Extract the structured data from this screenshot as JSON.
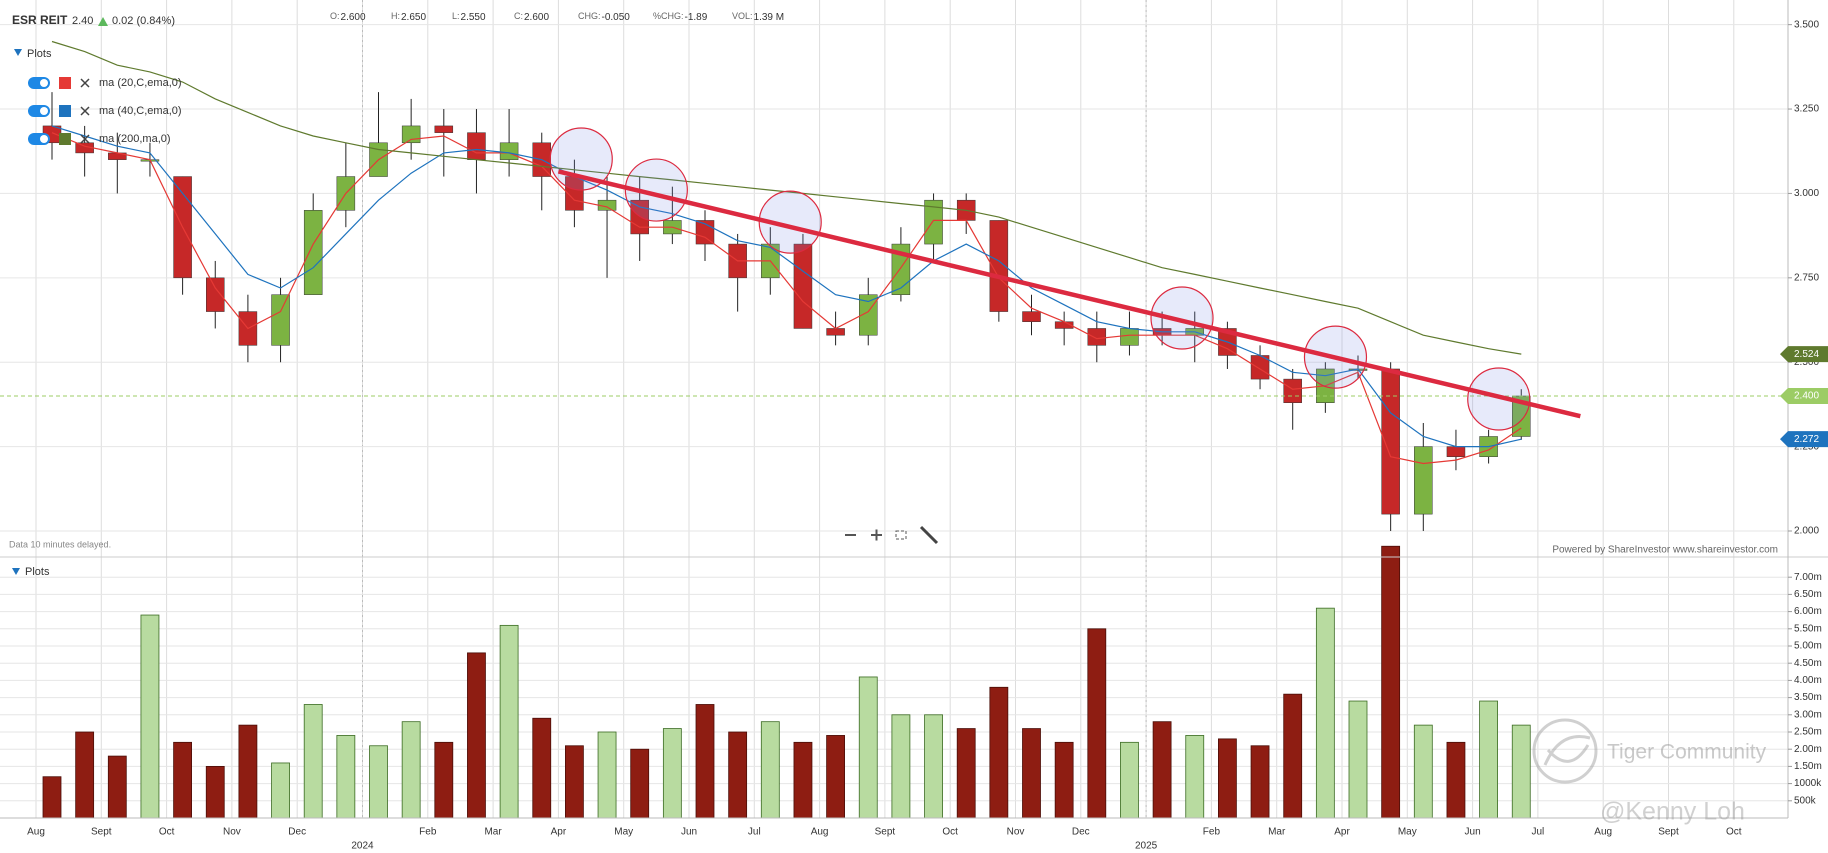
{
  "header": {
    "symbol": "ESR REIT",
    "last": "2.40",
    "change": "0.02 (0.84%)",
    "ohlc": [
      {
        "key": "O:",
        "value": "2.600"
      },
      {
        "key": "H:",
        "value": "2.650"
      },
      {
        "key": "L:",
        "value": "2.550"
      },
      {
        "key": "C:",
        "value": "2.600"
      },
      {
        "key": "CHG:",
        "value": "-0.050"
      },
      {
        "key": "%CHG:",
        "value": "-1.89"
      },
      {
        "key": "VOL:",
        "value": "1.39 M"
      }
    ]
  },
  "notes": {
    "delay": "Data 10 minutes delayed.",
    "credit": "Powered by ShareInvestor www.shareinvestor.com"
  },
  "watermark": {
    "brand": "Tiger Community",
    "author": "@Kenny Loh"
  },
  "chart_data": [
    {
      "type": "candlestick",
      "panel_label": "Plots",
      "categories": [
        "Aug",
        null,
        "Sept",
        null,
        "Oct",
        null,
        "Nov",
        null,
        "Dec",
        null,
        "2024",
        null,
        "Feb",
        null,
        "Mar",
        null,
        "Apr",
        null,
        "May",
        null,
        "Jun",
        null,
        "Jul",
        null,
        "Aug",
        null,
        "Sept",
        null,
        "Oct",
        null,
        "Nov",
        null,
        "Dec",
        null,
        "2025",
        null,
        "Feb",
        null,
        "Mar",
        null,
        "Apr",
        null,
        "May",
        null,
        "Jun",
        null,
        "Jul",
        null,
        "Aug",
        null,
        "Sept",
        null,
        "Oct",
        null
      ],
      "open": [
        3.2,
        3.15,
        3.12,
        3.1,
        3.05,
        2.75,
        2.65,
        2.55,
        2.7,
        2.95,
        3.05,
        3.15,
        3.2,
        3.18,
        3.1,
        3.15,
        3.05,
        2.95,
        2.98,
        2.88,
        2.92,
        2.85,
        2.75,
        2.85,
        2.6,
        2.58,
        2.7,
        2.85,
        2.98,
        2.92,
        2.65,
        2.62,
        2.6,
        2.55,
        2.6,
        2.58,
        2.6,
        2.52,
        2.45,
        2.38,
        2.48,
        2.48,
        2.05,
        2.25,
        2.22,
        2.28,
        null,
        null,
        null,
        null,
        null,
        null,
        null,
        null
      ],
      "high": [
        3.3,
        3.2,
        3.18,
        3.15,
        3.05,
        2.8,
        2.7,
        2.75,
        3.0,
        3.15,
        3.3,
        3.28,
        3.25,
        3.25,
        3.25,
        3.18,
        3.1,
        3.05,
        3.05,
        3.02,
        2.95,
        2.88,
        2.9,
        2.88,
        2.65,
        2.75,
        2.9,
        3.0,
        3.0,
        2.92,
        2.7,
        2.65,
        2.65,
        2.65,
        2.65,
        2.65,
        2.62,
        2.55,
        2.48,
        2.5,
        2.52,
        2.5,
        2.32,
        2.3,
        2.3,
        2.42,
        null,
        null,
        null,
        null,
        null,
        null,
        null,
        null
      ],
      "low": [
        3.1,
        3.05,
        3.0,
        3.05,
        2.7,
        2.6,
        2.5,
        2.5,
        2.7,
        2.9,
        3.05,
        3.1,
        3.05,
        3.0,
        3.05,
        2.95,
        2.9,
        2.75,
        2.8,
        2.85,
        2.8,
        2.65,
        2.7,
        2.6,
        2.55,
        2.55,
        2.68,
        2.8,
        2.88,
        2.62,
        2.58,
        2.55,
        2.5,
        2.52,
        2.55,
        2.5,
        2.48,
        2.42,
        2.3,
        2.35,
        2.45,
        2.0,
        2.0,
        2.18,
        2.2,
        2.27,
        null,
        null,
        null,
        null,
        null,
        null,
        null,
        null
      ],
      "close": [
        3.15,
        3.12,
        3.1,
        3.1,
        2.75,
        2.65,
        2.55,
        2.7,
        2.95,
        3.05,
        3.15,
        3.2,
        3.18,
        3.1,
        3.15,
        3.05,
        2.95,
        2.98,
        2.88,
        2.92,
        2.85,
        2.75,
        2.85,
        2.6,
        2.58,
        2.7,
        2.85,
        2.98,
        2.92,
        2.65,
        2.62,
        2.6,
        2.55,
        2.6,
        2.58,
        2.6,
        2.52,
        2.45,
        2.38,
        2.48,
        2.48,
        2.05,
        2.25,
        2.22,
        2.28,
        2.4,
        null,
        null,
        null,
        null,
        null,
        null,
        null,
        null
      ],
      "up_color": "#7cb342",
      "down_color": "#c62828",
      "series": [
        {
          "name": "ma (20,C,ema,0)",
          "color": "#e53935",
          "values": [
            3.18,
            3.14,
            3.12,
            3.1,
            2.9,
            2.72,
            2.6,
            2.65,
            2.85,
            3.0,
            3.1,
            3.16,
            3.17,
            3.12,
            3.12,
            3.08,
            2.98,
            2.96,
            2.9,
            2.9,
            2.87,
            2.8,
            2.8,
            2.68,
            2.6,
            2.65,
            2.78,
            2.92,
            2.92,
            2.75,
            2.66,
            2.62,
            2.57,
            2.58,
            2.58,
            2.58,
            2.54,
            2.48,
            2.42,
            2.43,
            2.47,
            2.22,
            2.2,
            2.21,
            2.24,
            2.305,
            null,
            null,
            null,
            null,
            null,
            null,
            null,
            null
          ]
        },
        {
          "name": "ma (40,C,ema,0)",
          "color": "#1e73be",
          "values": [
            3.2,
            3.17,
            3.14,
            3.12,
            3.0,
            2.88,
            2.76,
            2.72,
            2.78,
            2.88,
            2.98,
            3.06,
            3.12,
            3.13,
            3.12,
            3.1,
            3.05,
            3.01,
            2.96,
            2.94,
            2.91,
            2.86,
            2.84,
            2.77,
            2.7,
            2.68,
            2.72,
            2.8,
            2.85,
            2.8,
            2.72,
            2.67,
            2.62,
            2.6,
            2.59,
            2.59,
            2.56,
            2.52,
            2.47,
            2.46,
            2.48,
            2.35,
            2.28,
            2.25,
            2.25,
            2.272,
            null,
            null,
            null,
            null,
            null,
            null,
            null,
            null
          ]
        },
        {
          "name": "ma (200,ma,0)",
          "color": "#5f7a2e",
          "values": [
            3.45,
            3.42,
            3.38,
            3.36,
            3.33,
            3.28,
            3.24,
            3.2,
            3.17,
            3.15,
            3.13,
            3.12,
            3.11,
            3.1,
            3.09,
            3.08,
            3.07,
            3.06,
            3.05,
            3.04,
            3.03,
            3.02,
            3.01,
            3.0,
            2.99,
            2.98,
            2.97,
            2.96,
            2.95,
            2.93,
            2.9,
            2.87,
            2.84,
            2.81,
            2.78,
            2.76,
            2.74,
            2.72,
            2.7,
            2.68,
            2.66,
            2.62,
            2.58,
            2.56,
            2.54,
            2.524,
            null,
            null,
            null,
            null,
            null,
            null,
            null,
            null
          ]
        }
      ],
      "price_line": {
        "value": 2.4,
        "label": "2.400",
        "color": "#9ccc65"
      },
      "trendline": {
        "start": [
          16,
          3.065
        ],
        "end": [
          47.3,
          2.34
        ],
        "color": "#dc2a40"
      },
      "highlights": [
        [
          16.7,
          3.102
        ],
        [
          19.0,
          3.01
        ],
        [
          23.1,
          2.915
        ],
        [
          35.1,
          2.631
        ],
        [
          39.8,
          2.515
        ],
        [
          44.8,
          2.391
        ]
      ],
      "ylim": [
        1.923,
        3.573
      ],
      "yticks": [
        {
          "value": 2.0,
          "label": "2.000"
        },
        {
          "value": 2.25,
          "label": "2.250"
        },
        {
          "value": 2.5,
          "label": "2.500"
        },
        {
          "value": 2.75,
          "label": "2.750"
        },
        {
          "value": 3.0,
          "label": "3.000"
        },
        {
          "value": 3.25,
          "label": "3.250"
        },
        {
          "value": 3.5,
          "label": "3.500"
        }
      ],
      "grid": true
    },
    {
      "type": "volume",
      "panel_label": "Plots",
      "up_color": "#b8dba0",
      "down_color": "#8e1d12",
      "values": [
        1200000,
        2500000,
        1800000,
        5900000,
        2200000,
        1500000,
        2700000,
        1600000,
        3300000,
        2400000,
        2100000,
        2800000,
        2200000,
        4800000,
        5600000,
        2900000,
        2100000,
        2500000,
        2000000,
        2600000,
        3300000,
        2500000,
        2800000,
        2200000,
        2400000,
        4100000,
        3000000,
        3000000,
        2600000,
        3800000,
        2600000,
        2200000,
        5500000,
        2200000,
        2800000,
        2400000,
        2300000,
        2100000,
        3600000,
        6100000,
        3400000,
        7900000,
        2700000,
        2200000,
        3400000,
        2700000,
        null,
        null,
        null,
        null,
        null,
        null,
        null,
        null
      ],
      "ylim": [
        0,
        7500000
      ],
      "yticks": [
        {
          "value": 500000,
          "label": "500k"
        },
        {
          "value": 1000000,
          "label": "1000k"
        },
        {
          "value": 1500000,
          "label": "1.50m"
        },
        {
          "value": 2000000,
          "label": "2.00m"
        },
        {
          "value": 2500000,
          "label": "2.50m"
        },
        {
          "value": 3000000,
          "label": "3.00m"
        },
        {
          "value": 3500000,
          "label": "3.50m"
        },
        {
          "value": 4000000,
          "label": "4.00m"
        },
        {
          "value": 4500000,
          "label": "4.50m"
        },
        {
          "value": 5000000,
          "label": "5.00m"
        },
        {
          "value": 5500000,
          "label": "5.50m"
        },
        {
          "value": 6000000,
          "label": "6.00m"
        },
        {
          "value": 6500000,
          "label": "6.50m"
        },
        {
          "value": 7000000,
          "label": "7.00m"
        }
      ],
      "grid": true
    }
  ]
}
